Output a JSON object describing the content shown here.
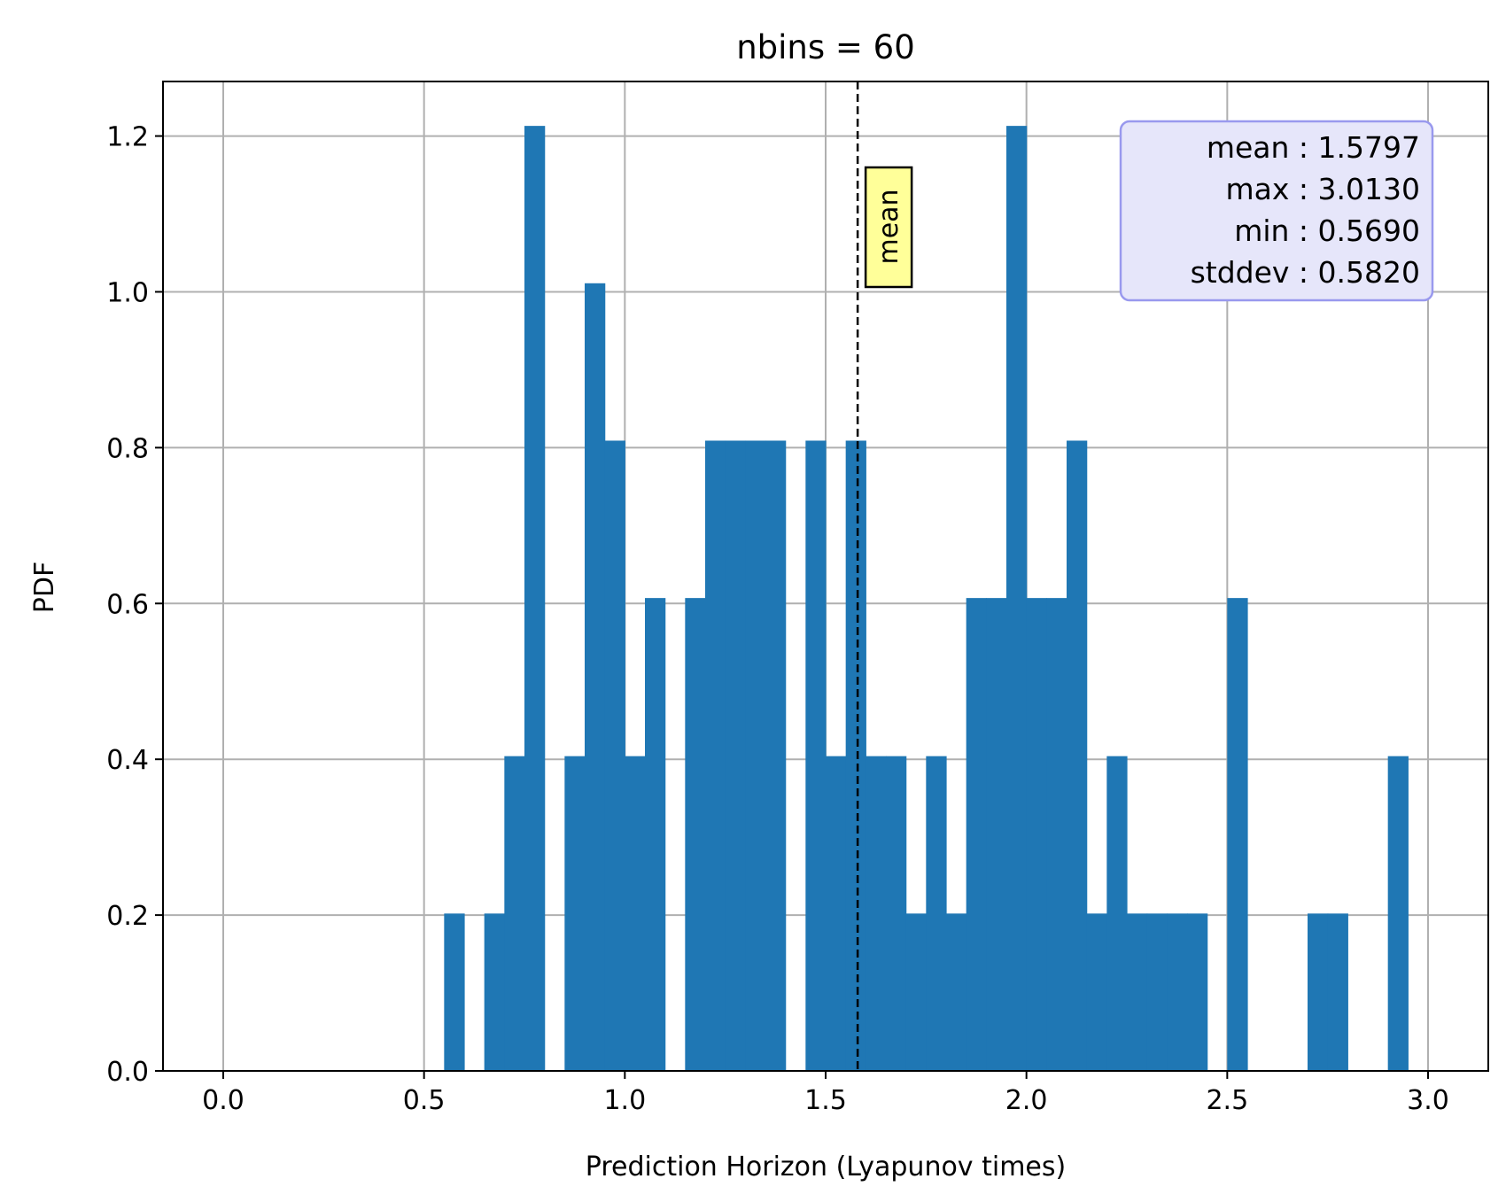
{
  "chart_data": {
    "type": "bar",
    "title": "nbins = 60",
    "xlabel": "Prediction Horizon (Lyapunov times)",
    "ylabel": "PDF",
    "xlim": [
      -0.15,
      3.15
    ],
    "ylim": [
      0,
      1.27
    ],
    "grid": true,
    "bin_width": 0.05,
    "bins": [
      {
        "x": 0.55,
        "value": 0.202
      },
      {
        "x": 0.65,
        "value": 0.202
      },
      {
        "x": 0.7,
        "value": 0.404
      },
      {
        "x": 0.75,
        "value": 1.213
      },
      {
        "x": 0.85,
        "value": 0.404
      },
      {
        "x": 0.9,
        "value": 1.011
      },
      {
        "x": 0.95,
        "value": 0.809
      },
      {
        "x": 1.0,
        "value": 0.404
      },
      {
        "x": 1.05,
        "value": 0.607
      },
      {
        "x": 1.15,
        "value": 0.607
      },
      {
        "x": 1.2,
        "value": 0.809
      },
      {
        "x": 1.25,
        "value": 0.809
      },
      {
        "x": 1.3,
        "value": 0.809
      },
      {
        "x": 1.35,
        "value": 0.809
      },
      {
        "x": 1.45,
        "value": 0.809
      },
      {
        "x": 1.5,
        "value": 0.404
      },
      {
        "x": 1.55,
        "value": 0.809
      },
      {
        "x": 1.6,
        "value": 0.404
      },
      {
        "x": 1.65,
        "value": 0.404
      },
      {
        "x": 1.7,
        "value": 0.202
      },
      {
        "x": 1.75,
        "value": 0.404
      },
      {
        "x": 1.8,
        "value": 0.202
      },
      {
        "x": 1.85,
        "value": 0.607
      },
      {
        "x": 1.9,
        "value": 0.607
      },
      {
        "x": 1.95,
        "value": 1.213
      },
      {
        "x": 2.0,
        "value": 0.607
      },
      {
        "x": 2.05,
        "value": 0.607
      },
      {
        "x": 2.1,
        "value": 0.809
      },
      {
        "x": 2.15,
        "value": 0.202
      },
      {
        "x": 2.2,
        "value": 0.404
      },
      {
        "x": 2.25,
        "value": 0.202
      },
      {
        "x": 2.3,
        "value": 0.202
      },
      {
        "x": 2.35,
        "value": 0.202
      },
      {
        "x": 2.4,
        "value": 0.202
      },
      {
        "x": 2.5,
        "value": 0.607
      },
      {
        "x": 2.7,
        "value": 0.202
      },
      {
        "x": 2.75,
        "value": 0.202
      },
      {
        "x": 2.9,
        "value": 0.404
      }
    ],
    "xticks": [
      0.0,
      0.5,
      1.0,
      1.5,
      2.0,
      2.5,
      3.0
    ],
    "xtick_labels": [
      "0.0",
      "0.5",
      "1.0",
      "1.5",
      "2.0",
      "2.5",
      "3.0"
    ],
    "yticks": [
      0.0,
      0.2,
      0.4,
      0.6,
      0.8,
      1.0,
      1.2
    ],
    "ytick_labels": [
      "0.0",
      "0.2",
      "0.4",
      "0.6",
      "0.8",
      "1.0",
      "1.2"
    ],
    "mean_line": {
      "x": 1.5797,
      "label": "mean"
    },
    "stats_box": {
      "lines": [
        "mean : 1.5797",
        "max : 3.0130",
        "min : 0.5690",
        "stddev : 0.5820"
      ],
      "placement": "top-right"
    },
    "colors": {
      "bar": "#1f77b4",
      "grid": "#b0b0b0",
      "mean_line": "#000000",
      "mean_label_bg": "#ffff99",
      "stats_bg": "#e6e6fa",
      "stats_border": "#9999ee"
    }
  }
}
